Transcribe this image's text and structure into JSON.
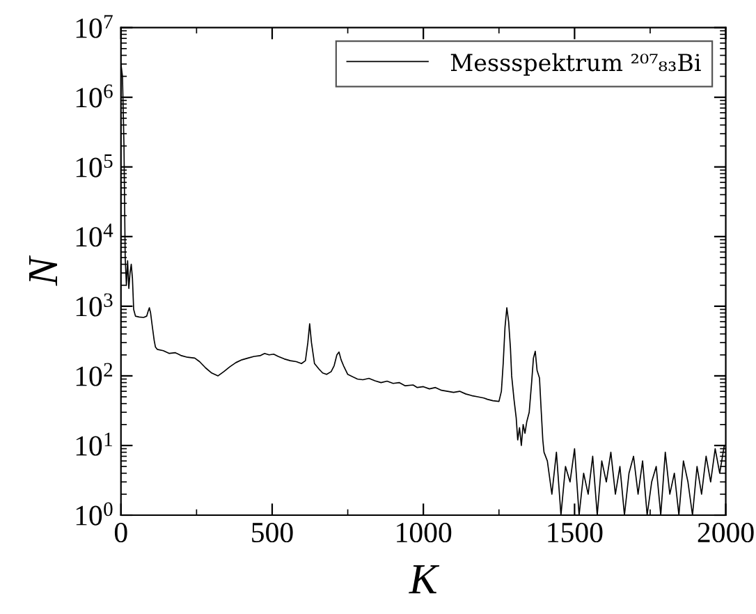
{
  "chart_data": {
    "type": "line",
    "xlabel": "K",
    "ylabel": "N",
    "log": "y",
    "xlim": [
      0,
      2000
    ],
    "xticks": [
      0,
      500,
      1000,
      1500,
      2000
    ],
    "ylim": [
      1,
      10000000
    ],
    "yticks": [
      {
        "value": 1,
        "label": "10$^{0}$"
      },
      {
        "value": 10,
        "label": "10$^{1}$"
      },
      {
        "value": 100,
        "label": "10$^{2}$"
      },
      {
        "value": 1000,
        "label": "10$^{3}$"
      },
      {
        "value": 10000,
        "label": "10$^{4}$"
      },
      {
        "value": 100000,
        "label": "10$^{5}$"
      },
      {
        "value": 1000000,
        "label": "10$^{6}$"
      },
      {
        "value": 10000000,
        "label": "10$^{7}$"
      }
    ],
    "grid": false,
    "legend": "top right",
    "marker": "none",
    "line_style": "solid",
    "series": [
      {
        "name": "Messspektrum ²⁰⁷₈₃Bi",
        "color": "#000000",
        "x": [
          0,
          5,
          10,
          14,
          18,
          22,
          26,
          30,
          34,
          38,
          42,
          48,
          60,
          75,
          85,
          90,
          94,
          98,
          104,
          110,
          114,
          120,
          140,
          160,
          180,
          200,
          220,
          244,
          260,
          280,
          300,
          321,
          340,
          360,
          380,
          400,
          420,
          440,
          460,
          475,
          490,
          505,
          520,
          540,
          560,
          580,
          597,
          610,
          618,
          624,
          630,
          640,
          655,
          667,
          680,
          695,
          705,
          714,
          721,
          728,
          736,
          750,
          782,
          800,
          820,
          840,
          860,
          880,
          900,
          920,
          940,
          966,
          980,
          1000,
          1020,
          1040,
          1060,
          1080,
          1100,
          1120,
          1140,
          1160,
          1180,
          1200,
          1212,
          1230,
          1250,
          1258,
          1264,
          1270,
          1276,
          1282,
          1288,
          1292,
          1300,
          1307,
          1312,
          1318,
          1324,
          1330,
          1336,
          1342,
          1350,
          1358,
          1364,
          1370,
          1376,
          1384,
          1390,
          1395,
          1399,
          1410,
          1425,
          1440,
          1455,
          1470,
          1485,
          1500,
          1515,
          1530,
          1545,
          1560,
          1575,
          1590,
          1605,
          1620,
          1635,
          1650,
          1665,
          1680,
          1695,
          1710,
          1725,
          1740,
          1755,
          1770,
          1785,
          1800,
          1815,
          1830,
          1845,
          1860,
          1875,
          1890,
          1905,
          1920,
          1935,
          1950,
          1965,
          1980,
          1995
        ],
        "values": [
          3000000,
          2000000,
          200000,
          5000,
          2000,
          4500,
          1800,
          3000,
          4000,
          2500,
          900,
          720,
          700,
          690,
          720,
          850,
          950,
          800,
          500,
          320,
          260,
          240,
          230,
          210,
          215,
          195,
          185,
          180,
          160,
          130,
          110,
          100,
          115,
          135,
          155,
          170,
          180,
          190,
          195,
          210,
          200,
          205,
          190,
          175,
          165,
          160,
          150,
          165,
          300,
          560,
          300,
          150,
          125,
          110,
          105,
          115,
          140,
          200,
          220,
          170,
          140,
          105,
          90,
          88,
          92,
          85,
          80,
          84,
          78,
          80,
          72,
          74,
          68,
          70,
          65,
          68,
          62,
          60,
          58,
          60,
          55,
          52,
          50,
          48,
          46,
          44,
          43,
          60,
          150,
          500,
          950,
          600,
          250,
          100,
          45,
          25,
          12,
          18,
          10,
          20,
          15,
          22,
          30,
          80,
          180,
          225,
          120,
          93,
          30,
          12,
          8,
          6,
          2,
          8,
          1,
          5,
          3,
          9,
          1,
          4,
          2,
          7,
          1,
          6,
          3,
          8,
          2,
          5,
          1,
          4,
          7,
          2,
          6,
          1,
          3,
          5,
          1,
          8,
          2,
          4,
          1,
          6,
          3,
          1,
          5,
          2,
          7,
          3,
          9,
          4,
          10
        ]
      }
    ]
  }
}
